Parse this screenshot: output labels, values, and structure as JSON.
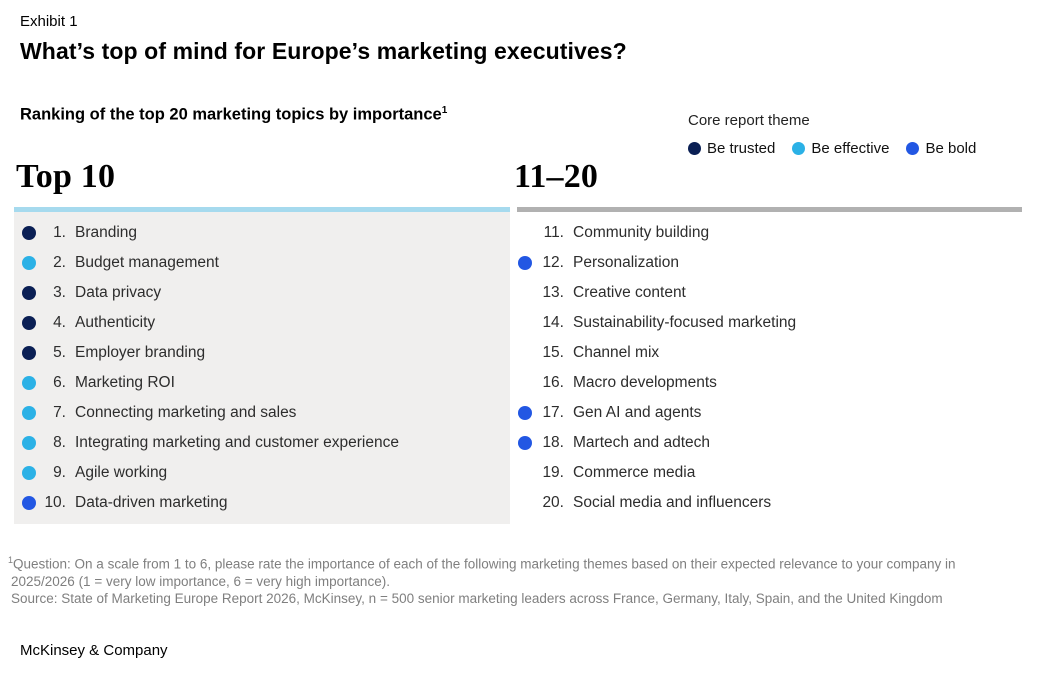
{
  "exhibit": {
    "label": "Exhibit 1",
    "title": "What’s top of mind for Europe’s marketing executives?"
  },
  "subtitle": {
    "text": "Ranking of the top 20 marketing topics by importance",
    "superscript": "1"
  },
  "legend": {
    "title": "Core report theme",
    "colors": {
      "trusted": "#0a1f54",
      "effective": "#2bb1e6",
      "bold": "#2257e3"
    },
    "items": [
      {
        "label": "Be trusted",
        "theme": "trusted",
        "color": "#0a1f54"
      },
      {
        "label": "Be effective",
        "theme": "effective",
        "color": "#2bb1e6"
      },
      {
        "label": "Be bold",
        "theme": "bold",
        "color": "#2257e3"
      }
    ]
  },
  "columns": [
    {
      "heading": "Top 10",
      "accent_color": "#a6daee",
      "items": [
        {
          "num": "1.",
          "label": "Branding",
          "theme": "trusted"
        },
        {
          "num": "2.",
          "label": "Budget management",
          "theme": "effective"
        },
        {
          "num": "3.",
          "label": "Data privacy",
          "theme": "trusted"
        },
        {
          "num": "4.",
          "label": "Authenticity",
          "theme": "trusted"
        },
        {
          "num": "5.",
          "label": "Employer branding",
          "theme": "trusted"
        },
        {
          "num": "6.",
          "label": "Marketing ROI",
          "theme": "effective"
        },
        {
          "num": "7.",
          "label": "Connecting marketing and sales",
          "theme": "effective"
        },
        {
          "num": "8.",
          "label": "Integrating marketing and customer experience",
          "theme": "effective"
        },
        {
          "num": "9.",
          "label": "Agile working",
          "theme": "effective"
        },
        {
          "num": "10.",
          "label": "Data-driven marketing",
          "theme": "bold"
        }
      ]
    },
    {
      "heading": "11–20",
      "accent_color": "#b1b1b1",
      "items": [
        {
          "num": "11.",
          "label": "Community building",
          "theme": "none"
        },
        {
          "num": "12.",
          "label": "Personalization",
          "theme": "bold"
        },
        {
          "num": "13.",
          "label": "Creative content",
          "theme": "none"
        },
        {
          "num": "14.",
          "label": "Sustainability-focused marketing",
          "theme": "none"
        },
        {
          "num": "15.",
          "label": "Channel mix",
          "theme": "none"
        },
        {
          "num": "16.",
          "label": "Macro developments",
          "theme": "none"
        },
        {
          "num": "17.",
          "label": "Gen AI and agents",
          "theme": "bold"
        },
        {
          "num": "18.",
          "label": "Martech and adtech",
          "theme": "bold"
        },
        {
          "num": "19.",
          "label": "Commerce media",
          "theme": "none"
        },
        {
          "num": "20.",
          "label": "Social media and influencers",
          "theme": "none"
        }
      ]
    }
  ],
  "footnotes": {
    "superscript": "1",
    "question_line1": "Question: On a scale from 1 to 6, please rate the importance of each of the following marketing themes based on their expected relevance to your company in",
    "question_line2": "2025/2026 (1 = very low importance, 6 = very high importance).",
    "source": "Source: State of Marketing Europe Report 2026, McKinsey, n = 500 senior marketing leaders across France, Germany, Italy, Spain, and the United Kingdom"
  },
  "footer": {
    "brand": "McKinsey & Company"
  },
  "chart_data": {
    "type": "table",
    "title": "What’s top of mind for Europe’s marketing executives?",
    "subtitle": "Ranking of the top 20 marketing topics by importance",
    "legend_title": "Core report theme",
    "legend": [
      "Be trusted",
      "Be effective",
      "Be bold"
    ],
    "ranking": [
      {
        "rank": 1,
        "topic": "Branding",
        "core_theme": "Be trusted"
      },
      {
        "rank": 2,
        "topic": "Budget management",
        "core_theme": "Be effective"
      },
      {
        "rank": 3,
        "topic": "Data privacy",
        "core_theme": "Be trusted"
      },
      {
        "rank": 4,
        "topic": "Authenticity",
        "core_theme": "Be trusted"
      },
      {
        "rank": 5,
        "topic": "Employer branding",
        "core_theme": "Be trusted"
      },
      {
        "rank": 6,
        "topic": "Marketing ROI",
        "core_theme": "Be effective"
      },
      {
        "rank": 7,
        "topic": "Connecting marketing and sales",
        "core_theme": "Be effective"
      },
      {
        "rank": 8,
        "topic": "Integrating marketing and customer experience",
        "core_theme": "Be effective"
      },
      {
        "rank": 9,
        "topic": "Agile working",
        "core_theme": "Be effective"
      },
      {
        "rank": 10,
        "topic": "Data-driven marketing",
        "core_theme": "Be bold"
      },
      {
        "rank": 11,
        "topic": "Community building",
        "core_theme": null
      },
      {
        "rank": 12,
        "topic": "Personalization",
        "core_theme": "Be bold"
      },
      {
        "rank": 13,
        "topic": "Creative content",
        "core_theme": null
      },
      {
        "rank": 14,
        "topic": "Sustainability-focused marketing",
        "core_theme": null
      },
      {
        "rank": 15,
        "topic": "Channel mix",
        "core_theme": null
      },
      {
        "rank": 16,
        "topic": "Macro developments",
        "core_theme": null
      },
      {
        "rank": 17,
        "topic": "Gen AI and agents",
        "core_theme": "Be bold"
      },
      {
        "rank": 18,
        "topic": "Martech and adtech",
        "core_theme": "Be bold"
      },
      {
        "rank": 19,
        "topic": "Commerce media",
        "core_theme": null
      },
      {
        "rank": 20,
        "topic": "Social media and influencers",
        "core_theme": null
      }
    ]
  }
}
